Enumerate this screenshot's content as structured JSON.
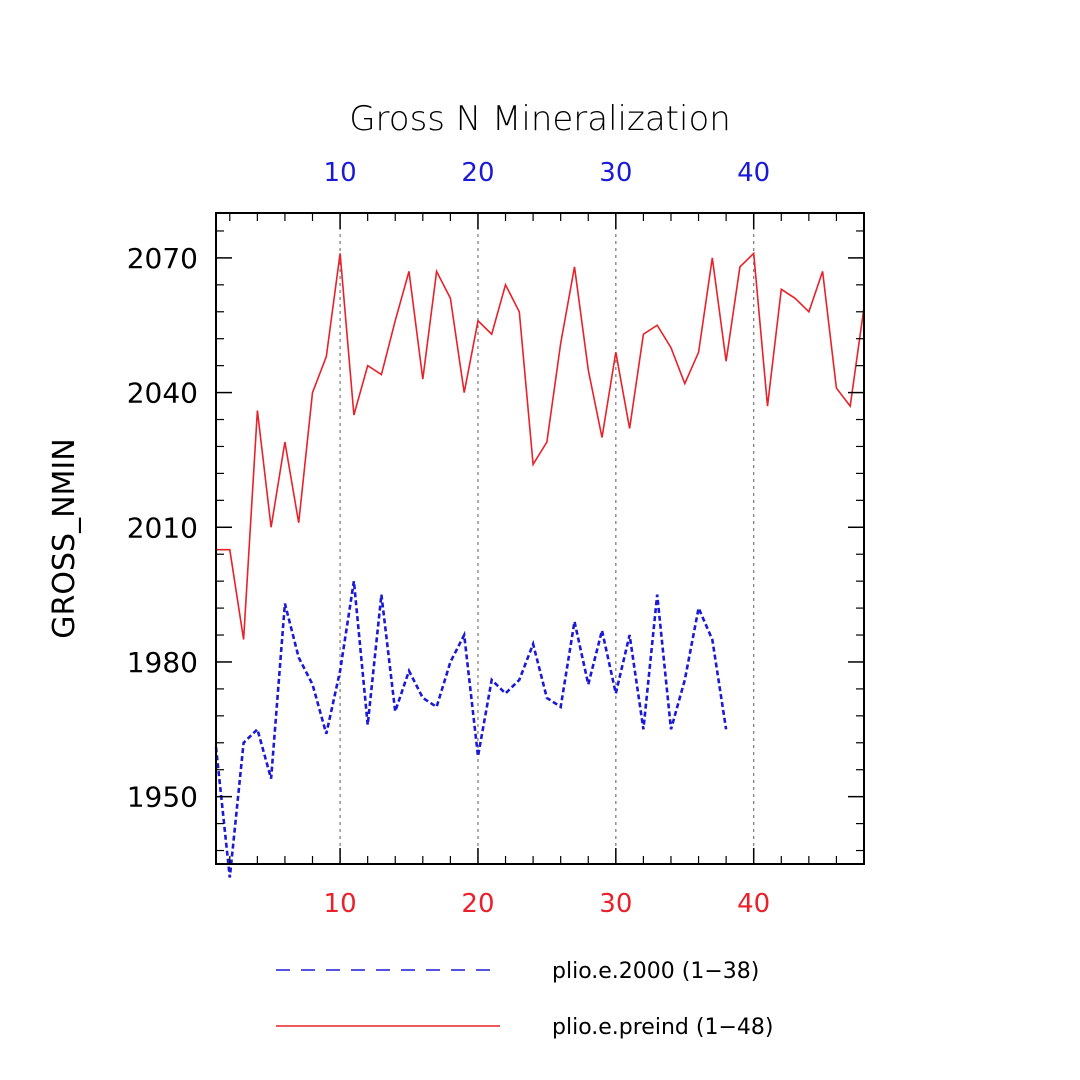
{
  "chart_data": {
    "type": "line",
    "title": "Gross N Mineralization",
    "ylabel": "GROSS_NMIN",
    "ylim": [
      1935,
      2080
    ],
    "yticks": [
      1950,
      1980,
      2010,
      2040,
      2070
    ],
    "yminor_step": 6,
    "legend_position": "bottom",
    "bottom_axis": {
      "xlim": [
        1,
        48
      ],
      "ticks": [
        10,
        20,
        30,
        40
      ],
      "color": "#e8212a"
    },
    "top_axis": {
      "xlim": [
        1,
        48
      ],
      "ticks": [
        10,
        20,
        30,
        40
      ],
      "color": "#1a1ad6"
    },
    "gridlines_x": [
      10,
      20,
      30,
      40
    ],
    "series": [
      {
        "name": "plio.e.2000 (1−38)",
        "color": "#1a1ad6",
        "style": "dashed",
        "x": [
          1,
          2,
          3,
          4,
          5,
          6,
          7,
          8,
          9,
          10,
          11,
          12,
          13,
          14,
          15,
          16,
          17,
          18,
          19,
          20,
          21,
          22,
          23,
          24,
          25,
          26,
          27,
          28,
          29,
          30,
          31,
          32,
          33,
          34,
          35,
          36,
          37,
          38
        ],
        "values": [
          1961,
          1932,
          1962,
          1965,
          1954,
          1993,
          1981,
          1975,
          1964,
          1978,
          1998,
          1966,
          1995,
          1969,
          1978,
          1972,
          1970,
          1980,
          1986,
          1959,
          1976,
          1973,
          1976,
          1984,
          1972,
          1970,
          1989,
          1975,
          1987,
          1973,
          1986,
          1965,
          1995,
          1965,
          1976,
          1992,
          1985,
          1965
        ]
      },
      {
        "name": "plio.e.preind (1−48)",
        "color": "#e8212a",
        "style": "solid",
        "x": [
          1,
          2,
          3,
          4,
          5,
          6,
          7,
          8,
          9,
          10,
          11,
          12,
          13,
          14,
          15,
          16,
          17,
          18,
          19,
          20,
          21,
          22,
          23,
          24,
          25,
          26,
          27,
          28,
          29,
          30,
          31,
          32,
          33,
          34,
          35,
          36,
          37,
          38,
          39,
          40,
          41,
          42,
          43,
          44,
          45,
          46,
          47,
          48
        ],
        "values": [
          2005,
          2005,
          1985,
          2036,
          2010,
          2029,
          2011,
          2040,
          2048,
          2071,
          2035,
          2046,
          2044,
          2056,
          2067,
          2043,
          2067,
          2061,
          2040,
          2056,
          2053,
          2064,
          2058,
          2024,
          2029,
          2051,
          2068,
          2045,
          2030,
          2049,
          2032,
          2053,
          2055,
          2050,
          2042,
          2049,
          2070,
          2047,
          2068,
          2071,
          2037,
          2063,
          2061,
          2058,
          2067,
          2041,
          2037,
          2059
        ]
      }
    ]
  }
}
